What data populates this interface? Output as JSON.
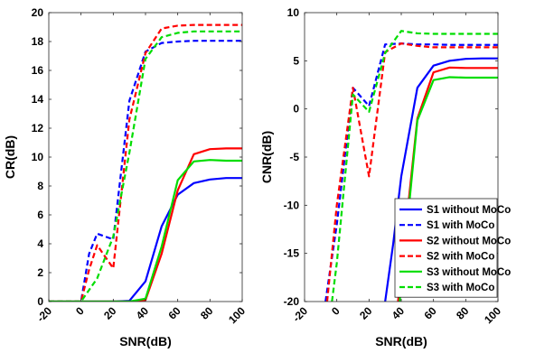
{
  "colors": {
    "blue": "#0000ff",
    "red": "#ff0000",
    "green": "#00dd00"
  },
  "chart_data": [
    {
      "type": "line",
      "xlabel": "SNR(dB)",
      "ylabel": "CR(dB)",
      "xlim": [
        -20,
        100
      ],
      "ylim": [
        0,
        20
      ],
      "xticks": [
        -20,
        0,
        20,
        40,
        60,
        80,
        100
      ],
      "yticks": [
        0,
        2,
        4,
        6,
        8,
        10,
        12,
        14,
        16,
        18,
        20
      ],
      "grid": false,
      "series": [
        {
          "name": "S1 without MoCo",
          "color": "blue",
          "dash": false,
          "x": [
            -20,
            -10,
            0,
            10,
            20,
            30,
            40,
            50,
            60,
            70,
            80,
            90,
            100
          ],
          "y": [
            0,
            0,
            0,
            0,
            0,
            0.05,
            1.4,
            5.2,
            7.4,
            8.2,
            8.45,
            8.55,
            8.55
          ]
        },
        {
          "name": "S1 with MoCo",
          "color": "blue",
          "dash": true,
          "x": [
            -20,
            -10,
            0,
            5,
            10,
            20,
            30,
            40,
            50,
            60,
            70,
            80,
            90,
            100
          ],
          "y": [
            0,
            0,
            0,
            3.3,
            4.7,
            4.3,
            13.9,
            17.3,
            17.9,
            18,
            18.05,
            18.05,
            18.05,
            18.05
          ]
        },
        {
          "name": "S2 without MoCo",
          "color": "red",
          "dash": false,
          "x": [
            -20,
            -10,
            0,
            10,
            20,
            30,
            40,
            50,
            60,
            70,
            80,
            90,
            100
          ],
          "y": [
            0,
            0,
            0,
            0,
            0,
            0,
            0.1,
            3.3,
            7.7,
            10.2,
            10.55,
            10.6,
            10.6
          ]
        },
        {
          "name": "S2 with MoCo",
          "color": "red",
          "dash": true,
          "x": [
            -20,
            -10,
            0,
            5,
            10,
            20,
            30,
            40,
            50,
            60,
            70,
            80,
            90,
            100
          ],
          "y": [
            0,
            0,
            0,
            2.2,
            3.9,
            2.3,
            12.6,
            17.2,
            18.9,
            19.1,
            19.15,
            19.15,
            19.15,
            19.15
          ]
        },
        {
          "name": "S3 without MoCo",
          "color": "green",
          "dash": false,
          "x": [
            -20,
            -10,
            0,
            10,
            20,
            30,
            40,
            50,
            60,
            70,
            80,
            90,
            100
          ],
          "y": [
            0,
            0,
            0,
            0,
            0,
            0,
            0.2,
            3.8,
            8.4,
            9.7,
            9.8,
            9.75,
            9.75
          ]
        },
        {
          "name": "S3 with MoCo",
          "color": "green",
          "dash": true,
          "x": [
            -20,
            -10,
            0,
            10,
            20,
            30,
            40,
            50,
            60,
            70,
            80,
            90,
            100
          ],
          "y": [
            0,
            0,
            0,
            1.6,
            4.5,
            10.3,
            16.8,
            18.3,
            18.6,
            18.7,
            18.7,
            18.7,
            18.7
          ]
        }
      ]
    },
    {
      "type": "line",
      "xlabel": "SNR(dB)",
      "ylabel": "CNR(dB)",
      "xlim": [
        -20,
        100
      ],
      "ylim": [
        -20,
        10
      ],
      "xticks": [
        -20,
        0,
        20,
        40,
        60,
        80,
        100
      ],
      "yticks": [
        -20,
        -15,
        -10,
        -5,
        0,
        5,
        10
      ],
      "grid": false,
      "legend": {
        "position": "bottom-right"
      },
      "series": [
        {
          "name": "S1 without MoCo",
          "color": "blue",
          "dash": false,
          "x": [
            30,
            35,
            40,
            50,
            60,
            70,
            80,
            90,
            100
          ],
          "y": [
            -20,
            -14,
            -7,
            2.2,
            4.5,
            5,
            5.2,
            5.25,
            5.25
          ]
        },
        {
          "name": "S1 with MoCo",
          "color": "blue",
          "dash": true,
          "x": [
            -7,
            0,
            10,
            20,
            30,
            40,
            50,
            60,
            70,
            80,
            90,
            100
          ],
          "y": [
            -20,
            -12,
            2.2,
            0.3,
            6.7,
            6.8,
            6.7,
            6.7,
            6.65,
            6.65,
            6.65,
            6.65
          ]
        },
        {
          "name": "S2 without MoCo",
          "color": "red",
          "dash": false,
          "x": [
            38,
            50,
            60,
            70,
            80,
            90,
            100
          ],
          "y": [
            -20,
            -1,
            3.8,
            4.3,
            4.25,
            4.25,
            4.25
          ]
        },
        {
          "name": "S2 with MoCo",
          "color": "red",
          "dash": true,
          "x": [
            -6,
            0,
            10,
            20,
            30,
            40,
            50,
            60,
            70,
            80,
            90,
            100
          ],
          "y": [
            -20,
            -10,
            2.2,
            -7,
            5.9,
            6.8,
            6.55,
            6.4,
            6.4,
            6.4,
            6.4,
            6.4
          ]
        },
        {
          "name": "S3 without MoCo",
          "color": "green",
          "dash": false,
          "x": [
            39,
            50,
            60,
            70,
            80,
            90,
            100
          ],
          "y": [
            -20,
            -1.2,
            3,
            3.3,
            3.25,
            3.25,
            3.25
          ]
        },
        {
          "name": "S3 with MoCo",
          "color": "green",
          "dash": true,
          "x": [
            -3,
            0,
            10,
            20,
            30,
            40,
            50,
            60,
            70,
            80,
            90,
            100
          ],
          "y": [
            -20,
            -16,
            1.5,
            -0.3,
            5.8,
            8.1,
            7.85,
            7.8,
            7.8,
            7.8,
            7.8,
            7.8
          ]
        }
      ]
    }
  ]
}
